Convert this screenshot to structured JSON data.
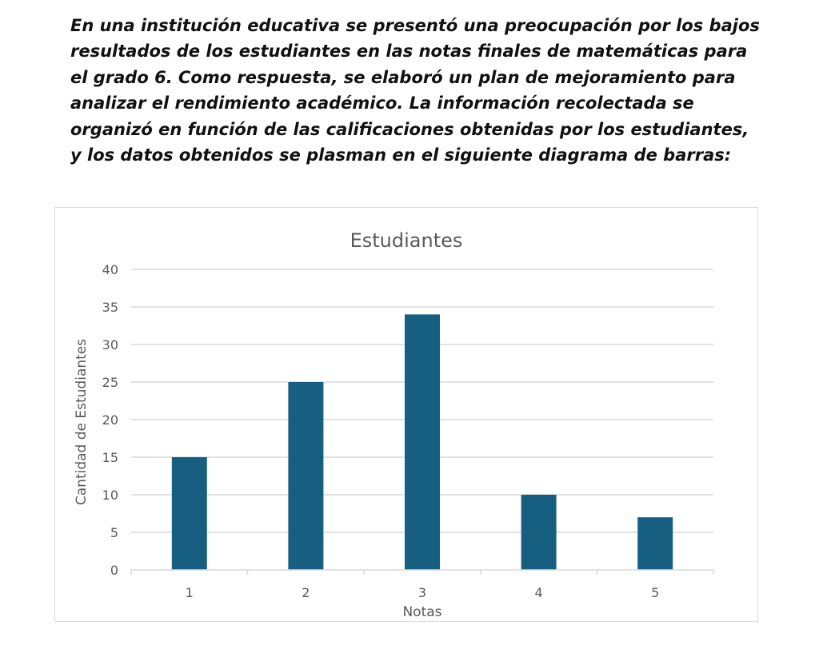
{
  "problem": {
    "lines": [
      "En una institución educativa se presentó una preocupación por los bajos",
      "resultados de los estudiantes en las notas finales de matemáticas para",
      "el grado 6. Como respuesta, se elaboró un plan de mejoramiento para",
      "analizar el rendimiento académico. La información recolectada se",
      "organizó en función de las calificaciones obtenidas por los estudiantes,",
      "y los datos obtenidos se plasman en el siguiente diagrama de barras:"
    ]
  },
  "chart_data": {
    "type": "bar",
    "title": "Estudiantes",
    "xlabel": "Notas",
    "ylabel": "Cantidad de Estudiantes",
    "categories": [
      "1",
      "2",
      "3",
      "4",
      "5"
    ],
    "series": [
      {
        "name": "Estudiantes",
        "values": [
          15,
          25,
          34,
          10,
          7
        ]
      }
    ],
    "ylim": [
      0,
      40
    ],
    "yticks": [
      0,
      5,
      10,
      15,
      20,
      25,
      30,
      35,
      40
    ],
    "grid": true,
    "legend": "none",
    "colors": {
      "bar": "#175f80",
      "grid": "#d9d9d9",
      "text": "#595959"
    }
  }
}
